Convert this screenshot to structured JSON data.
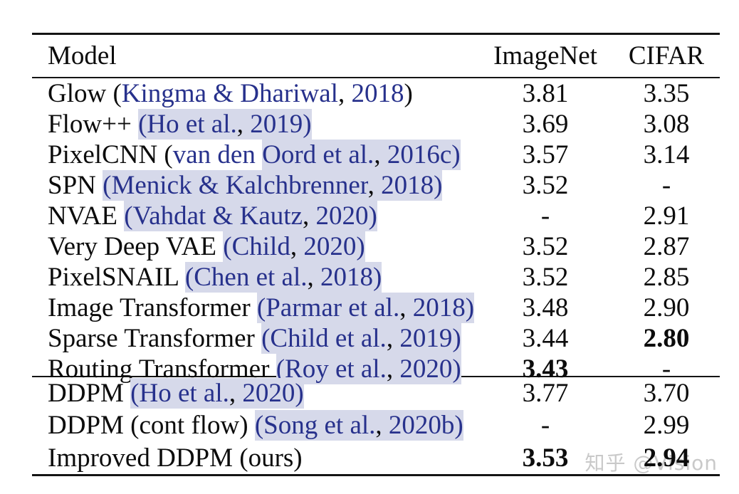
{
  "table": {
    "headers": {
      "model": "Model",
      "imagenet": "ImageNet",
      "cifar": "CIFAR"
    },
    "link_color": "#27318c",
    "highlight_color": "#d6d9ea",
    "sections": [
      {
        "rows": [
          {
            "model_segments": [
              {
                "t": "Glow (",
                "s": "n"
              },
              {
                "t": "Kingma & Dhariwal",
                "s": "l"
              },
              {
                "t": ", ",
                "s": "n"
              },
              {
                "t": "2018",
                "s": "l"
              },
              {
                "t": ")",
                "s": "n"
              }
            ],
            "imagenet": "3.81",
            "imagenet_bold": false,
            "cifar": "3.35",
            "cifar_bold": false
          },
          {
            "model_segments": [
              {
                "t": "Flow++ ",
                "s": "n"
              },
              {
                "t": "(Ho et al.",
                "s": "lh"
              },
              {
                "t": ", ",
                "s": "nh"
              },
              {
                "t": "2019",
                "s": "lh"
              },
              {
                "t": ")",
                "s": "lh"
              }
            ],
            "imagenet": "3.69",
            "imagenet_bold": false,
            "cifar": "3.08",
            "cifar_bold": false
          },
          {
            "model_segments": [
              {
                "t": "PixelCNN (",
                "s": "n"
              },
              {
                "t": "van den ",
                "s": "l"
              },
              {
                "t": "Oord et al.",
                "s": "lh"
              },
              {
                "t": ", ",
                "s": "nh"
              },
              {
                "t": "2016c",
                "s": "lh"
              },
              {
                "t": ")",
                "s": "lh"
              }
            ],
            "imagenet": "3.57",
            "imagenet_bold": false,
            "cifar": "3.14",
            "cifar_bold": false
          },
          {
            "model_segments": [
              {
                "t": "SPN ",
                "s": "n"
              },
              {
                "t": "(Menick & Kalchbrenner",
                "s": "lh"
              },
              {
                "t": ", ",
                "s": "nh"
              },
              {
                "t": "2018",
                "s": "lh"
              },
              {
                "t": ")",
                "s": "lh"
              }
            ],
            "imagenet": "3.52",
            "imagenet_bold": false,
            "cifar": "-",
            "cifar_bold": false
          },
          {
            "model_segments": [
              {
                "t": "NVAE ",
                "s": "n"
              },
              {
                "t": "(Vahdat & Kautz",
                "s": "lh"
              },
              {
                "t": ", ",
                "s": "nh"
              },
              {
                "t": "2020",
                "s": "lh"
              },
              {
                "t": ")",
                "s": "lh"
              }
            ],
            "imagenet": "-",
            "imagenet_bold": false,
            "cifar": "2.91",
            "cifar_bold": false
          },
          {
            "model_segments": [
              {
                "t": "Very Deep VAE ",
                "s": "n"
              },
              {
                "t": "(Child",
                "s": "lh"
              },
              {
                "t": ", ",
                "s": "nh"
              },
              {
                "t": "2020",
                "s": "lh"
              },
              {
                "t": ")",
                "s": "lh"
              }
            ],
            "imagenet": "3.52",
            "imagenet_bold": false,
            "cifar": "2.87",
            "cifar_bold": false
          },
          {
            "model_segments": [
              {
                "t": "PixelSNAIL ",
                "s": "n"
              },
              {
                "t": "(Chen et al.",
                "s": "lh"
              },
              {
                "t": ", ",
                "s": "nh"
              },
              {
                "t": "2018",
                "s": "lh"
              },
              {
                "t": ")",
                "s": "lh"
              }
            ],
            "imagenet": "3.52",
            "imagenet_bold": false,
            "cifar": "2.85",
            "cifar_bold": false
          },
          {
            "model_segments": [
              {
                "t": "Image Transformer ",
                "s": "n"
              },
              {
                "t": "(Parmar et al.",
                "s": "lh"
              },
              {
                "t": ", ",
                "s": "nh"
              },
              {
                "t": "2018",
                "s": "lh"
              },
              {
                "t": ")",
                "s": "lh"
              }
            ],
            "imagenet": "3.48",
            "imagenet_bold": false,
            "cifar": "2.90",
            "cifar_bold": false
          },
          {
            "model_segments": [
              {
                "t": "Sparse Transformer ",
                "s": "n"
              },
              {
                "t": "(Child et al.",
                "s": "lh"
              },
              {
                "t": ", ",
                "s": "nh"
              },
              {
                "t": "2019",
                "s": "lh"
              },
              {
                "t": ")",
                "s": "lh"
              }
            ],
            "imagenet": "3.44",
            "imagenet_bold": false,
            "cifar": "2.80",
            "cifar_bold": true
          },
          {
            "model_segments": [
              {
                "t": "Routing Transformer ",
                "s": "n"
              },
              {
                "t": "(Roy et al.",
                "s": "lh"
              },
              {
                "t": ", ",
                "s": "nh"
              },
              {
                "t": "2020",
                "s": "lh"
              },
              {
                "t": ")",
                "s": "lh"
              }
            ],
            "imagenet": "3.43",
            "imagenet_bold": true,
            "cifar": "-",
            "cifar_bold": false
          }
        ]
      },
      {
        "rows": [
          {
            "model_segments": [
              {
                "t": "DDPM ",
                "s": "n"
              },
              {
                "t": "(Ho et al.",
                "s": "lh"
              },
              {
                "t": ", ",
                "s": "nh"
              },
              {
                "t": "2020",
                "s": "lh"
              },
              {
                "t": ")",
                "s": "lh"
              }
            ],
            "imagenet": "3.77",
            "imagenet_bold": false,
            "cifar": "3.70",
            "cifar_bold": false
          },
          {
            "model_segments": [
              {
                "t": "DDPM (cont flow) ",
                "s": "n"
              },
              {
                "t": "(Song et al.",
                "s": "lh"
              },
              {
                "t": ", ",
                "s": "nh"
              },
              {
                "t": "2020b",
                "s": "lh"
              },
              {
                "t": ")",
                "s": "lh"
              }
            ],
            "imagenet": "-",
            "imagenet_bold": false,
            "cifar": "2.99",
            "cifar_bold": false
          },
          {
            "model_segments": [
              {
                "t": "Improved DDPM (ours)",
                "s": "n"
              }
            ],
            "imagenet": "3.53",
            "imagenet_bold": true,
            "cifar": "2.94",
            "cifar_bold": true
          }
        ]
      }
    ]
  },
  "watermark": {
    "text": "知乎 @Vision",
    "color": "#c9c9c9"
  }
}
